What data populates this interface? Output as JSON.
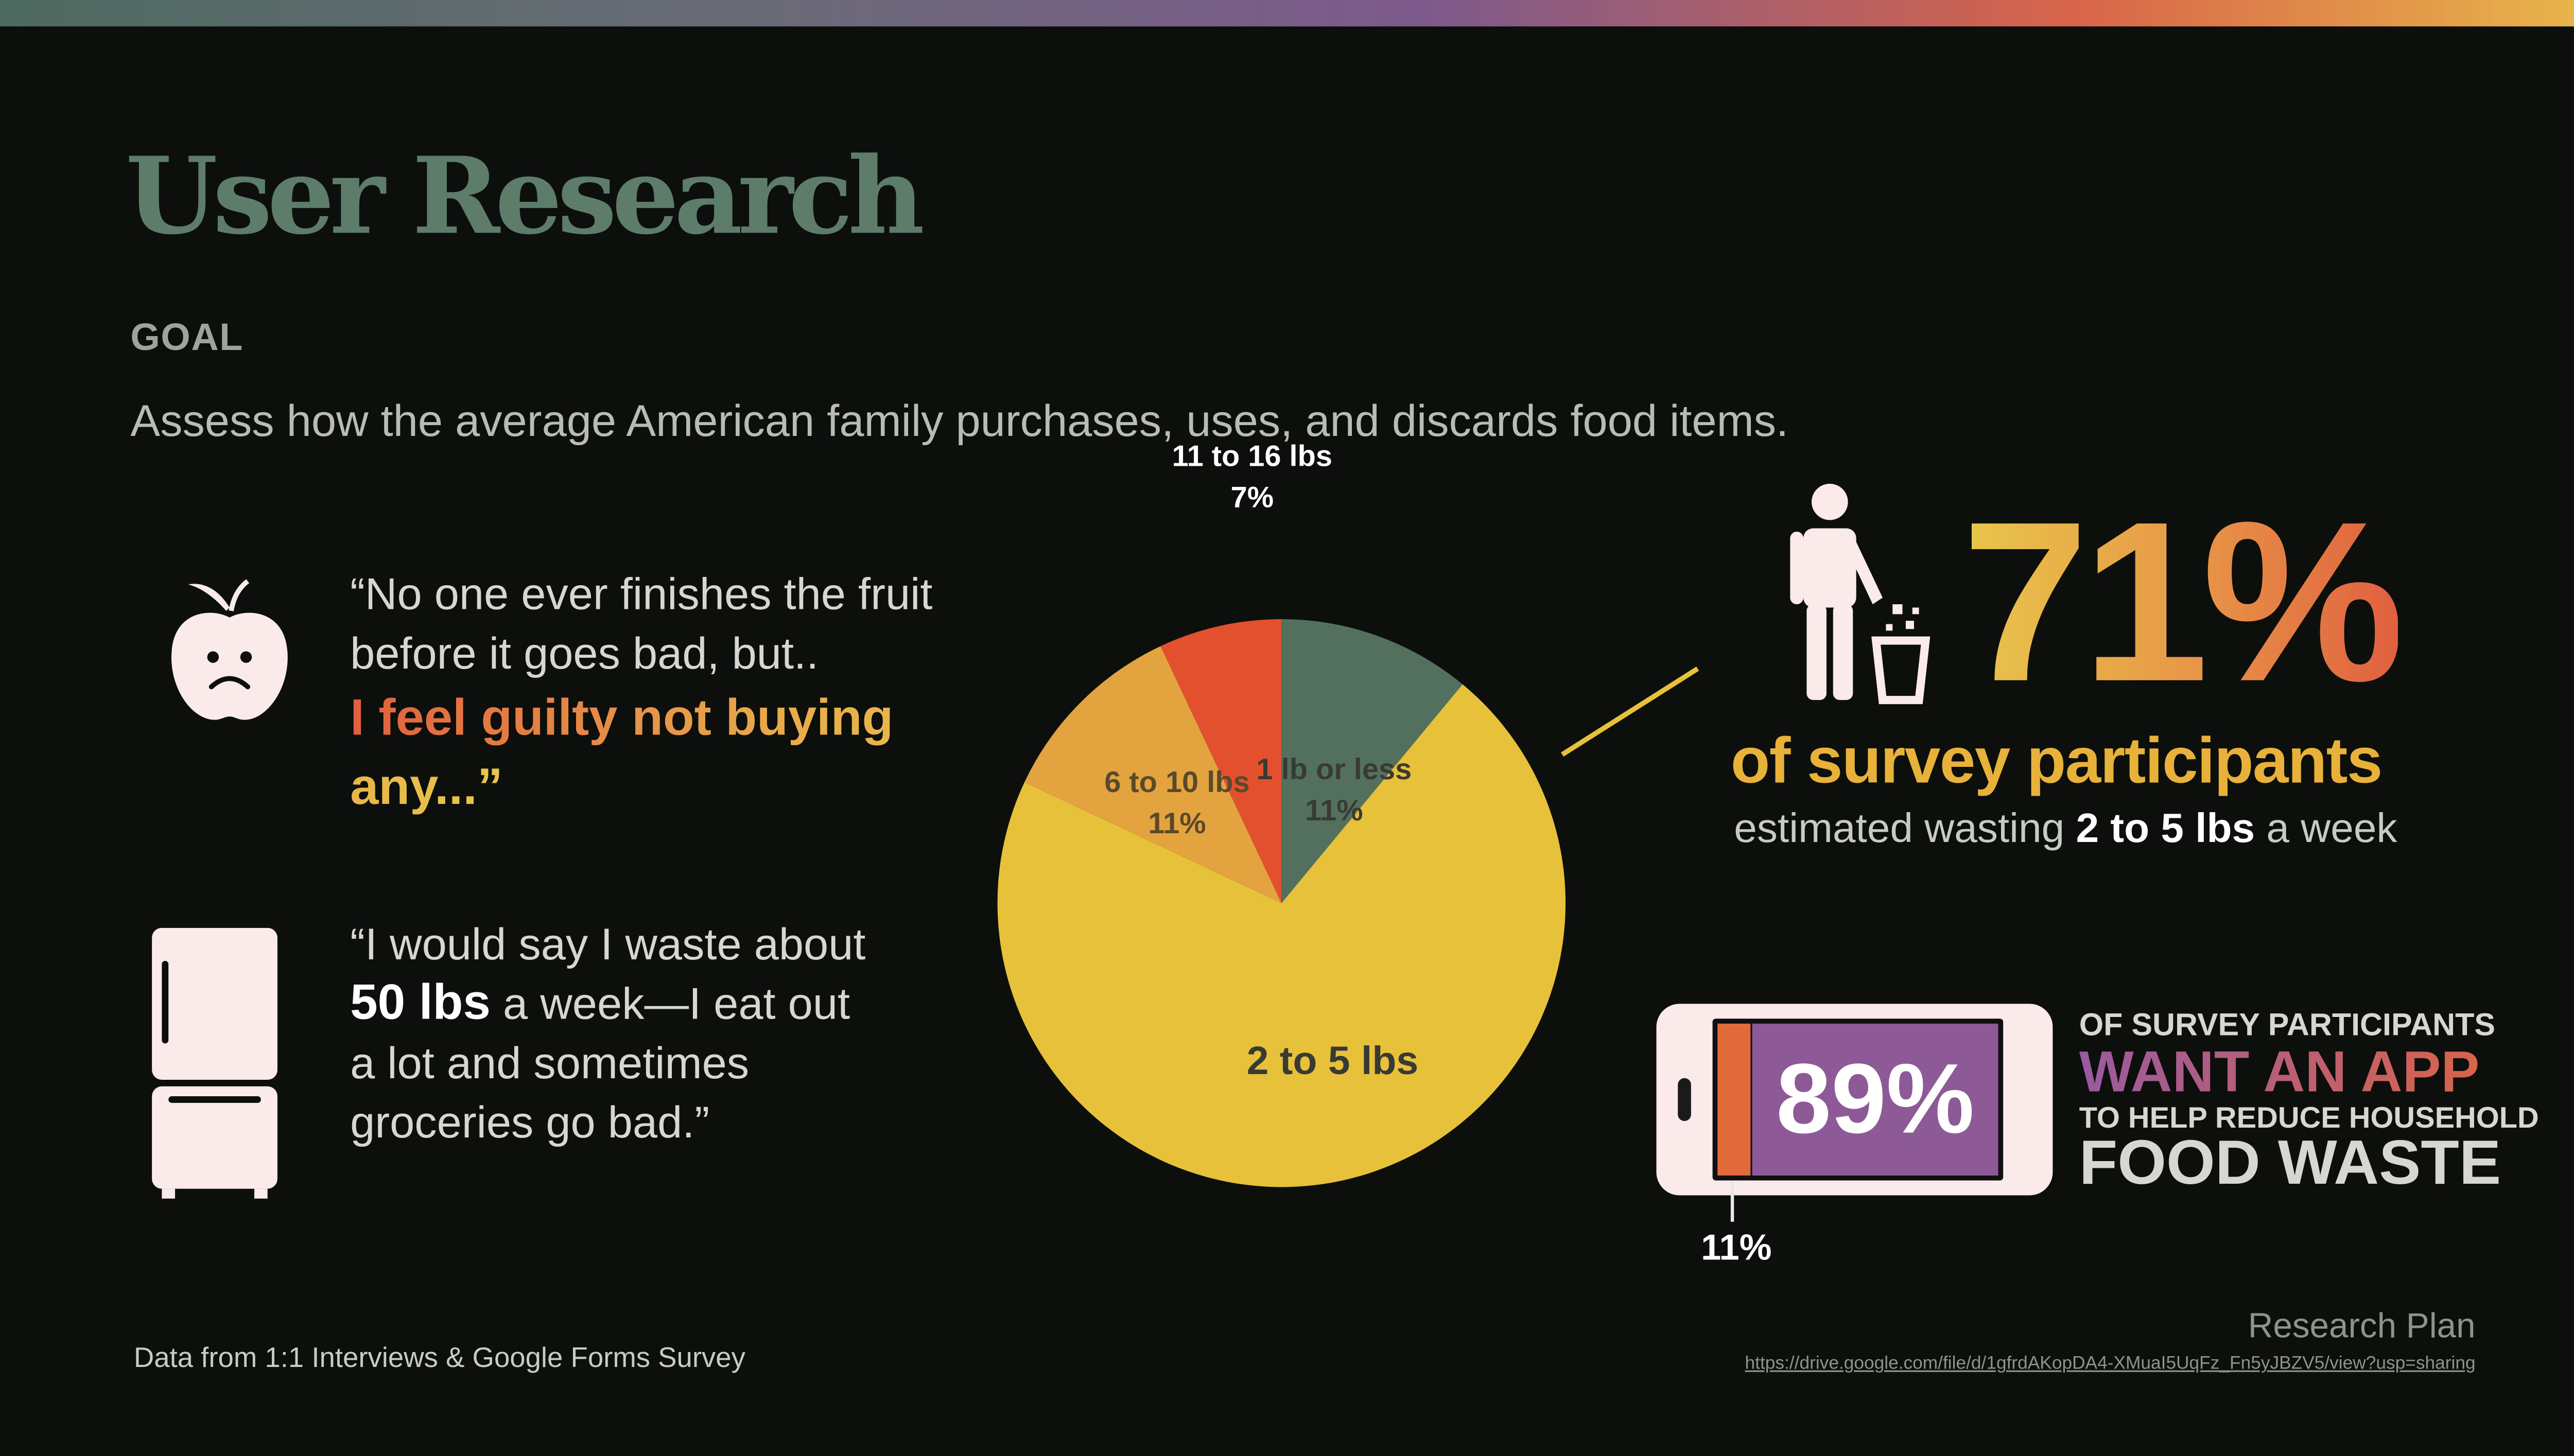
{
  "header": {
    "title": "User Research",
    "goal_label": "GOAL",
    "goal_text": "Assess how the average American family purchases, uses, and discards food items."
  },
  "quotes": {
    "q1_plain": "“No one ever finishes the fruit before it goes bad, but..",
    "q1_highlight": "I feel guilty not buying any...”",
    "q2_pre": "“I would say I waste about ",
    "q2_bold": "50 lbs",
    "q2_post": " a week—I eat out a lot and sometimes groceries go bad.”"
  },
  "chart_data": {
    "type": "pie",
    "slices": [
      {
        "label": "1 lb or less",
        "value": 11,
        "value_label": "11%",
        "color": "#53705f"
      },
      {
        "label": "2 to 5 lbs",
        "value": 71,
        "value_label": "",
        "color": "#e8c13a"
      },
      {
        "label": "6 to 10 lbs",
        "value": 11,
        "value_label": "11%",
        "color": "#e3a33e"
      },
      {
        "label": "11 to 16 lbs",
        "value": 7,
        "value_label": "7%",
        "color": "#e2502e"
      }
    ],
    "start_angle_deg": 0,
    "direction": "clockwise"
  },
  "stat_71": {
    "value": "71%",
    "subtitle": "of survey participants",
    "desc_pre": "estimated wasting ",
    "desc_bold": "2 to 5 lbs",
    "desc_post": " a week"
  },
  "stat_89": {
    "value": "89%",
    "remainder": "11%",
    "fill_fraction": 0.89,
    "line1": "OF SURVEY PARTICIPANTS",
    "line2": "WANT AN APP",
    "line3": "TO HELP REDUCE HOUSEHOLD",
    "line4": "FOOD WASTE"
  },
  "footer": {
    "source": "Data from 1:1 Interviews & Google Forms Survey",
    "plan_label": "Research Plan",
    "plan_link": "https://drive.google.com/file/d/1gfrdAKopDA4-XMuaI5UqFz_Fn5yJBZV5/view?usp=sharing"
  },
  "icons": [
    "sad-apple-icon",
    "refrigerator-icon",
    "person-trash-icon",
    "phone-icon"
  ],
  "colors": {
    "background": "#0d0f0c",
    "title": "#5d7d6a",
    "accent_yellow": "#e8c13a",
    "accent_orange": "#e0603f",
    "accent_purple": "#8d5a97"
  }
}
